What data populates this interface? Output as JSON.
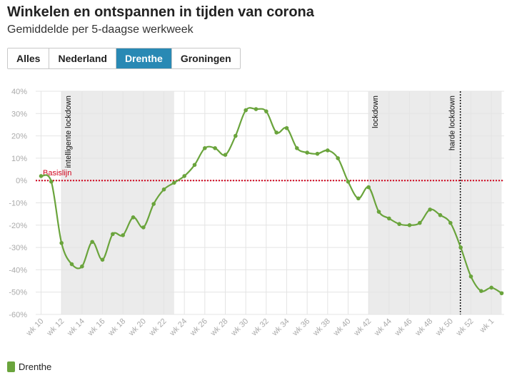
{
  "header": {
    "title": "Winkelen en ontspannen in tijden van corona",
    "subtitle": "Gemiddelde per 5-daagse werkweek"
  },
  "tabs": [
    {
      "label": "Alles",
      "active": false
    },
    {
      "label": "Nederland",
      "active": false
    },
    {
      "label": "Drenthe",
      "active": true
    },
    {
      "label": "Groningen",
      "active": false
    }
  ],
  "legend": {
    "label": "Drenthe",
    "color": "#6aa43c"
  },
  "chart_data": {
    "type": "line",
    "ylim": [
      -60,
      40
    ],
    "yticks": [
      40,
      30,
      20,
      10,
      0,
      -10,
      -20,
      -30,
      -40,
      -50,
      -60
    ],
    "ytick_labels": [
      "40%",
      "30%",
      "20%",
      "10%",
      "0%",
      "-10%",
      "-20%",
      "-30%",
      "-40%",
      "-50%",
      "-60%"
    ],
    "x_labels": [
      "wk 10",
      "wk 12",
      "wk 14",
      "wk 16",
      "wk 18",
      "wk 20",
      "wk 22",
      "wk 24",
      "wk 26",
      "wk 28",
      "wk 30",
      "wk 32",
      "wk 34",
      "wk 36",
      "wk 38",
      "wk 40",
      "wk 42",
      "wk 44",
      "wk 46",
      "wk 48",
      "wk 50",
      "wk 52",
      "wk 1"
    ],
    "x_label_index": [
      0,
      2,
      4,
      6,
      8,
      10,
      12,
      14,
      16,
      18,
      20,
      22,
      24,
      26,
      28,
      30,
      32,
      34,
      36,
      38,
      40,
      42,
      44
    ],
    "grid": true,
    "series": [
      {
        "name": "Drenthe",
        "color": "#6aa43c",
        "values": [
          2,
          -0.5,
          -28,
          -37.5,
          -38.5,
          -27.5,
          -35.5,
          -24,
          -24.5,
          -16.5,
          -21,
          -10.5,
          -4,
          -1,
          2,
          7,
          14.5,
          14.5,
          11.5,
          20,
          31.5,
          32,
          31,
          21.5,
          23.5,
          14.5,
          12.5,
          12,
          13.5,
          10,
          -0.5,
          -8,
          -3,
          -14,
          -17,
          -19.5,
          -20,
          -19,
          -13,
          -15.5,
          -19,
          -30,
          -43,
          -49.5,
          -48,
          -50.5
        ]
      }
    ],
    "baseline": {
      "value": 0,
      "label": "Basislijn",
      "color": "#d0021b"
    },
    "shaded_periods": [
      {
        "from_index": 2,
        "to_index": 13,
        "label": "intelligente lockdown"
      },
      {
        "from_index": 32,
        "to_index": 45,
        "label": "lockdown"
      }
    ],
    "markers": [
      {
        "index": 41,
        "label": "harde lockdown"
      }
    ]
  }
}
